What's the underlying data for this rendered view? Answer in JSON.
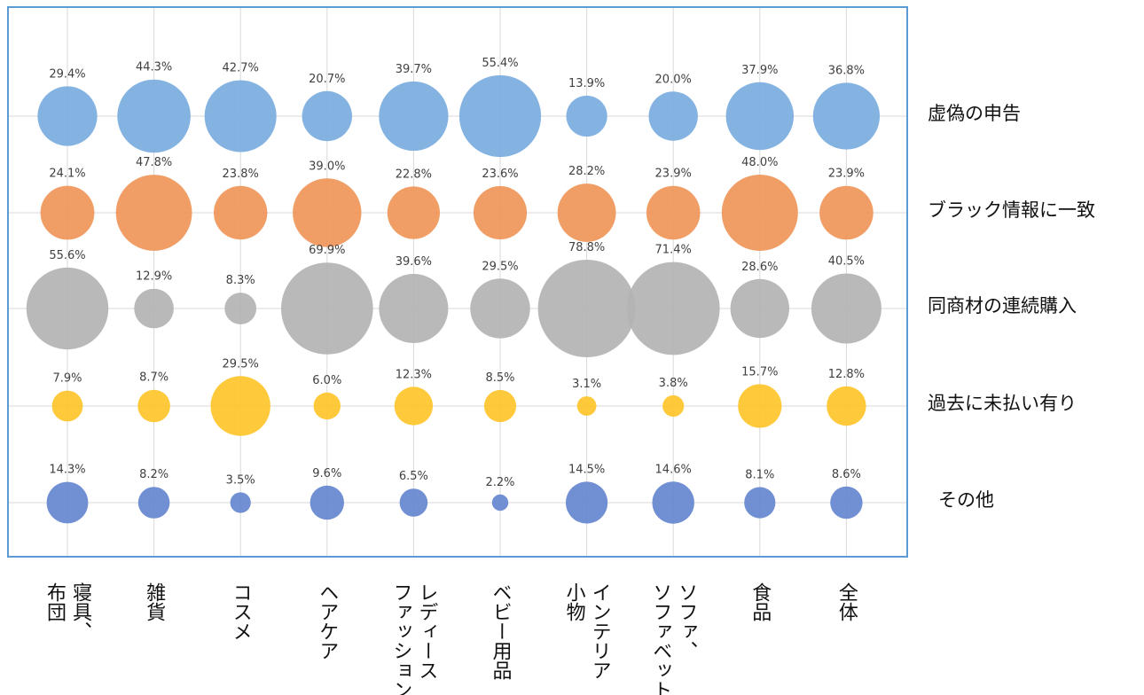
{
  "chart_data": {
    "type": "bubble",
    "categories": [
      [
        "寝具、",
        "布団"
      ],
      [
        "雑貨"
      ],
      [
        "コスメ"
      ],
      [
        "ヘアケア"
      ],
      [
        "レディース",
        "ファッション"
      ],
      [
        "ベビー用品"
      ],
      [
        "インテリア",
        "小物"
      ],
      [
        "ソファ、",
        "ソファベット"
      ],
      [
        "食品"
      ],
      [
        "全体"
      ]
    ],
    "series": [
      {
        "name": "虚偽の申告",
        "color": "#7aaddf",
        "values": [
          29.4,
          44.3,
          42.7,
          20.7,
          39.7,
          55.4,
          13.9,
          20.0,
          37.9,
          36.8
        ],
        "labels": [
          "29.4%",
          "44.3%",
          "42.7%",
          "20.7%",
          "39.7%",
          "55.4%",
          "13.9%",
          "20.0%",
          "37.9%",
          "36.8%"
        ]
      },
      {
        "name": "ブラック情報に一致",
        "color": "#ef9659",
        "values": [
          24.1,
          47.8,
          23.8,
          39.0,
          22.8,
          23.6,
          28.2,
          23.9,
          48.0,
          23.9
        ],
        "labels": [
          "24.1%",
          "47.8%",
          "23.8%",
          "39.0%",
          "22.8%",
          "23.6%",
          "28.2%",
          "23.9%",
          "48.0%",
          "23.9%"
        ]
      },
      {
        "name": "同商材の連続購入",
        "color": "#b3b3b3",
        "values": [
          55.6,
          12.9,
          8.3,
          69.9,
          39.6,
          29.5,
          78.8,
          71.4,
          28.6,
          40.5
        ],
        "labels": [
          "55.6%",
          "12.9%",
          "8.3%",
          "69.9%",
          "39.6%",
          "29.5%",
          "78.8%",
          "71.4%",
          "28.6%",
          "40.5%"
        ]
      },
      {
        "name": "過去に未払い有り",
        "color": "#fec62b",
        "values": [
          7.9,
          8.7,
          29.5,
          6.0,
          12.3,
          8.5,
          3.1,
          3.8,
          15.7,
          12.8
        ],
        "labels": [
          "7.9%",
          "8.7%",
          "29.5%",
          "6.0%",
          "12.3%",
          "8.5%",
          "3.1%",
          "3.8%",
          "15.7%",
          "12.8%"
        ]
      },
      {
        "name": "その他",
        "color": "#6585cf",
        "values": [
          14.3,
          8.2,
          3.5,
          9.6,
          6.5,
          2.2,
          14.5,
          14.6,
          8.1,
          8.6
        ],
        "labels": [
          "14.3%",
          "8.2%",
          "3.5%",
          "9.6%",
          "6.5%",
          "2.2%",
          "14.5%",
          "14.6%",
          "8.1%",
          "8.6%"
        ]
      }
    ],
    "gridlines": true,
    "legend": "right"
  }
}
